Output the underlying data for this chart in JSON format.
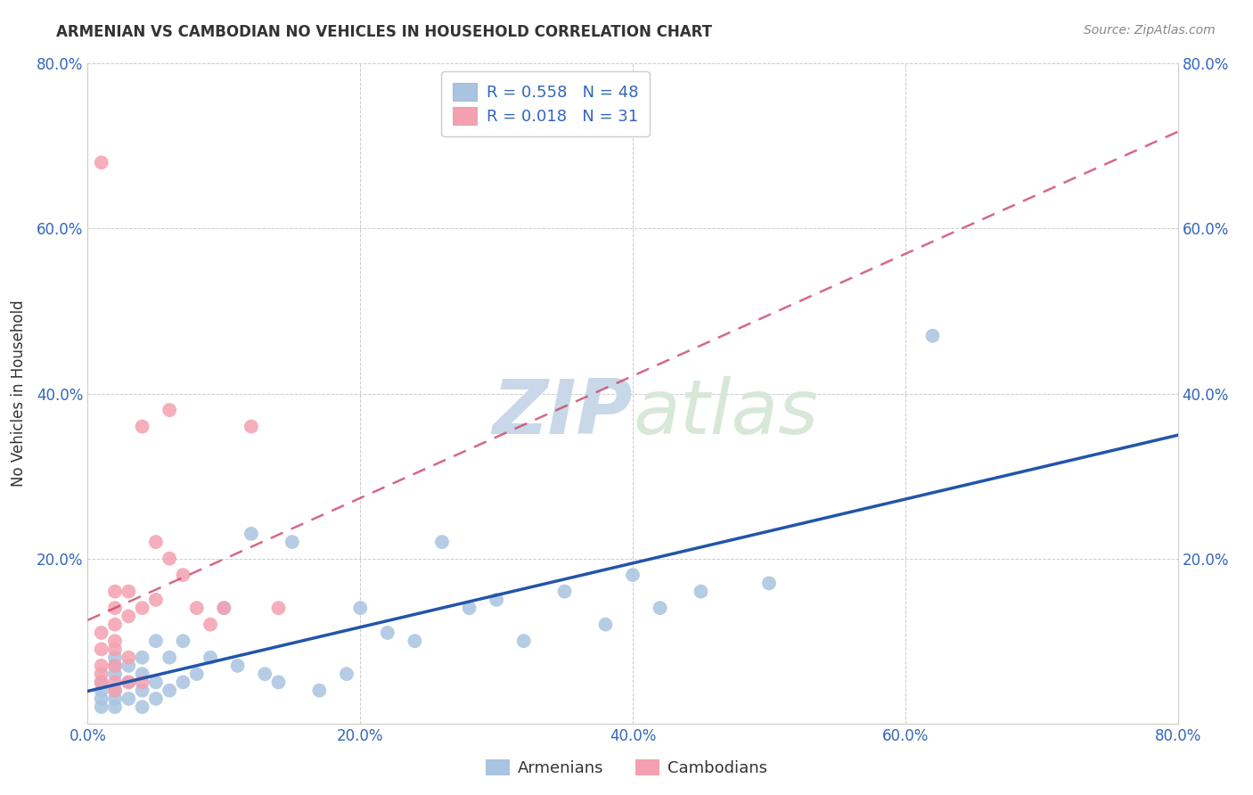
{
  "title": "ARMENIAN VS CAMBODIAN NO VEHICLES IN HOUSEHOLD CORRELATION CHART",
  "source": "Source: ZipAtlas.com",
  "ylabel": "No Vehicles in Household",
  "xlim": [
    0.0,
    0.8
  ],
  "ylim": [
    0.0,
    0.8
  ],
  "xticks": [
    0.0,
    0.2,
    0.4,
    0.6,
    0.8
  ],
  "yticks": [
    0.0,
    0.2,
    0.4,
    0.6,
    0.8
  ],
  "xticklabels": [
    "0.0%",
    "20.0%",
    "40.0%",
    "60.0%",
    "80.0%"
  ],
  "yticklabels": [
    "",
    "20.0%",
    "40.0%",
    "60.0%",
    "80.0%"
  ],
  "right_yticklabels": [
    "20.0%",
    "40.0%",
    "60.0%",
    "80.0%"
  ],
  "armenian_color": "#a8c4e0",
  "cambodian_color": "#f4a0b0",
  "armenian_line_color": "#2255aa",
  "cambodian_line_color": "#cc4466",
  "watermark_zip": "ZIP",
  "watermark_atlas": "atlas",
  "watermark_color": "#c8d8e8",
  "armenian_x": [
    0.01,
    0.01,
    0.01,
    0.01,
    0.02,
    0.02,
    0.02,
    0.02,
    0.02,
    0.02,
    0.03,
    0.03,
    0.03,
    0.04,
    0.04,
    0.04,
    0.04,
    0.05,
    0.05,
    0.05,
    0.06,
    0.06,
    0.07,
    0.07,
    0.08,
    0.09,
    0.1,
    0.11,
    0.12,
    0.13,
    0.14,
    0.15,
    0.17,
    0.19,
    0.2,
    0.22,
    0.24,
    0.26,
    0.28,
    0.3,
    0.32,
    0.35,
    0.38,
    0.4,
    0.42,
    0.45,
    0.5,
    0.62
  ],
  "armenian_y": [
    0.02,
    0.03,
    0.04,
    0.05,
    0.02,
    0.03,
    0.04,
    0.06,
    0.07,
    0.08,
    0.03,
    0.05,
    0.07,
    0.02,
    0.04,
    0.06,
    0.08,
    0.03,
    0.05,
    0.1,
    0.04,
    0.08,
    0.05,
    0.1,
    0.06,
    0.08,
    0.14,
    0.07,
    0.23,
    0.06,
    0.05,
    0.22,
    0.04,
    0.06,
    0.14,
    0.11,
    0.1,
    0.22,
    0.14,
    0.15,
    0.1,
    0.16,
    0.12,
    0.18,
    0.14,
    0.16,
    0.17,
    0.47
  ],
  "cambodian_x": [
    0.01,
    0.01,
    0.01,
    0.01,
    0.01,
    0.01,
    0.02,
    0.02,
    0.02,
    0.02,
    0.02,
    0.02,
    0.02,
    0.02,
    0.03,
    0.03,
    0.03,
    0.03,
    0.04,
    0.04,
    0.04,
    0.05,
    0.05,
    0.06,
    0.06,
    0.07,
    0.08,
    0.09,
    0.1,
    0.12,
    0.14
  ],
  "cambodian_y": [
    0.05,
    0.06,
    0.07,
    0.09,
    0.11,
    0.68,
    0.04,
    0.05,
    0.07,
    0.09,
    0.1,
    0.12,
    0.14,
    0.16,
    0.05,
    0.08,
    0.13,
    0.16,
    0.05,
    0.14,
    0.36,
    0.15,
    0.22,
    0.2,
    0.38,
    0.18,
    0.14,
    0.12,
    0.14,
    0.36,
    0.14
  ]
}
